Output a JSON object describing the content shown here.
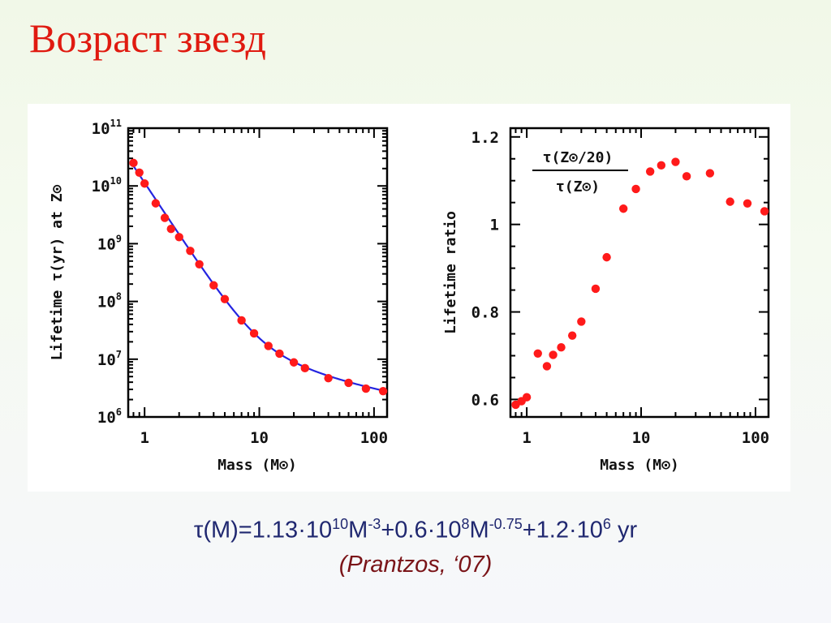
{
  "slide": {
    "title": "Возраст звезд",
    "formula": {
      "p1": "τ(M)=1.13",
      "p2": "·10",
      "e1": "10",
      "p3": "M",
      "e2": "-3",
      "p4": "+0.6",
      "p5": "·10",
      "e3": "8",
      "p6": "M",
      "e4": "-0.75",
      "p7": "+1.2",
      "p8": "·10",
      "e5": "6",
      "p9": " yr"
    },
    "citation": "(Prantzos, ‘07)"
  },
  "colors": {
    "title": "#e01a10",
    "points": "#ff1a1a",
    "fit_line": "#2424e0",
    "formula": "#202870",
    "citation": "#7a1418"
  },
  "chart_data": [
    {
      "type": "scatter",
      "xlabel": "Mass (M⊙)",
      "ylabel": "Lifetime τ(yr) at Z⊙",
      "x_scale": "log",
      "y_scale": "log",
      "xlim": [
        0.72,
        130
      ],
      "ylim": [
        1000000,
        100000000000
      ],
      "x_ticks": [
        1,
        10,
        100
      ],
      "x_tick_labels": [
        "1",
        "10",
        "100"
      ],
      "y_ticks": [
        1000000,
        10000000,
        100000000,
        1000000000,
        10000000000,
        100000000000
      ],
      "y_tick_labels": [
        {
          "base": "10",
          "exp": "6"
        },
        {
          "base": "10",
          "exp": "7"
        },
        {
          "base": "10",
          "exp": "8"
        },
        {
          "base": "10",
          "exp": "9"
        },
        {
          "base": "10",
          "exp": "10"
        },
        {
          "base": "10",
          "exp": "11"
        }
      ],
      "series": [
        {
          "kind": "points",
          "x": [
            0.8,
            0.9,
            1.0,
            1.25,
            1.5,
            1.7,
            2.0,
            2.5,
            3.0,
            4.0,
            5.0,
            7.0,
            9.0,
            12.0,
            15.0,
            20.0,
            25.0,
            40.0,
            60.0,
            85.0,
            120.0
          ],
          "y": [
            25000000000,
            17000000000,
            11000000000,
            5000000000,
            2800000000,
            1800000000,
            1300000000,
            750000000,
            440000000,
            190000000,
            110000000,
            47000000,
            28000000,
            17000000,
            12500000,
            8800000,
            7000000,
            4700000,
            3900000,
            3100000,
            2800000
          ]
        },
        {
          "kind": "line",
          "formula": "1.13e10*M^-3 + 0.6e8*M^-0.75 + 1.2e6",
          "x_range": [
            0.78,
            125
          ]
        }
      ]
    },
    {
      "type": "scatter",
      "xlabel": "Mass (M⊙)",
      "ylabel": "Lifetime ratio",
      "x_scale": "log",
      "y_scale": "linear",
      "xlim": [
        0.72,
        130
      ],
      "ylim": [
        0.56,
        1.22
      ],
      "x_ticks": [
        1,
        10,
        100
      ],
      "x_tick_labels": [
        "1",
        "10",
        "100"
      ],
      "y_ticks": [
        0.6,
        0.8,
        1.0,
        1.2
      ],
      "y_tick_labels": [
        "0.6",
        "0.8",
        "1",
        "1.2"
      ],
      "annotation": {
        "numerator": "τ(Z⊙/20)",
        "denominator": "τ(Z⊙)"
      },
      "series": [
        {
          "kind": "points",
          "x": [
            0.8,
            0.9,
            1.0,
            1.25,
            1.5,
            1.7,
            2.0,
            2.5,
            3.0,
            4.0,
            5.0,
            7.0,
            9.0,
            12.0,
            15.0,
            20.0,
            25.0,
            40.0,
            60.0,
            85.0,
            120.0
          ],
          "y": [
            0.588,
            0.596,
            0.605,
            0.705,
            0.676,
            0.702,
            0.719,
            0.746,
            0.778,
            0.853,
            0.925,
            1.036,
            1.081,
            1.121,
            1.135,
            1.143,
            1.11,
            1.117,
            1.052,
            1.048,
            1.03
          ]
        }
      ]
    }
  ]
}
